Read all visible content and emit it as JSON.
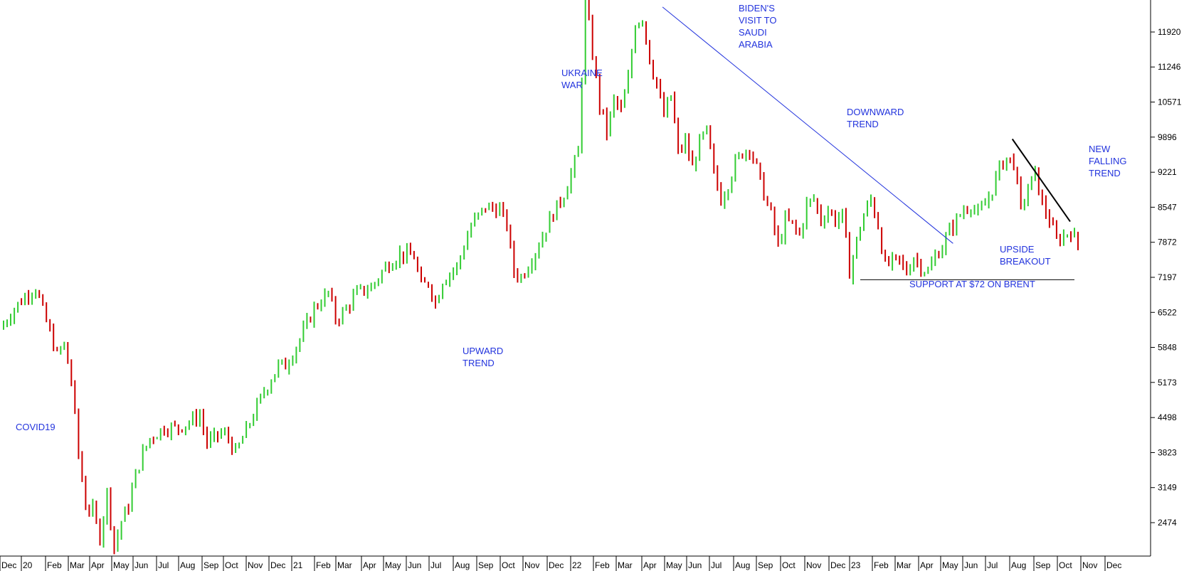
{
  "chart_data": {
    "type": "ohlc",
    "title": "",
    "ylim": [
      1800,
      12700
    ],
    "y_ticks": [
      11920,
      11246,
      10571,
      9896,
      9221,
      8547,
      7872,
      7197,
      6522,
      5848,
      5173,
      4498,
      3823,
      3149,
      2474
    ],
    "x_ticks": [
      "Dec",
      "20",
      "Feb",
      "Mar",
      "Apr",
      "May",
      "Jun",
      "Jul",
      "Aug",
      "Sep",
      "Oct",
      "Nov",
      "Dec",
      "21",
      "Feb",
      "Mar",
      "Apr",
      "May",
      "Jun",
      "Jul",
      "Aug",
      "Sep",
      "Oct",
      "Nov",
      "Dec",
      "22",
      "Feb",
      "Mar",
      "Apr",
      "May",
      "Jun",
      "Jul",
      "Aug",
      "Sep",
      "Oct",
      "Nov",
      "Dec",
      "23",
      "Feb",
      "Mar",
      "Apr",
      "May",
      "Jun",
      "Jul",
      "Aug",
      "Sep",
      "Oct",
      "Nov",
      "Dec"
    ],
    "up_color": "#33cc33",
    "down_color": "#cc0000",
    "annotation_color": "#2233dd",
    "grid": false,
    "price_path": [
      [
        0,
        6200
      ],
      [
        2,
        6600
      ],
      [
        4,
        6900
      ],
      [
        5,
        7000
      ],
      [
        6,
        6550
      ],
      [
        8,
        5700
      ],
      [
        9,
        5900
      ],
      [
        10,
        5200
      ],
      [
        11,
        3800
      ],
      [
        12,
        2800
      ],
      [
        13,
        2700
      ],
      [
        14,
        2200
      ],
      [
        15,
        3050
      ],
      [
        16,
        2000
      ],
      [
        17,
        2500
      ],
      [
        18,
        2800
      ],
      [
        19,
        3400
      ],
      [
        20,
        3800
      ],
      [
        21,
        4100
      ],
      [
        23,
        4300
      ],
      [
        25,
        4300
      ],
      [
        27,
        4450
      ],
      [
        28,
        4550
      ],
      [
        29,
        4000
      ],
      [
        31,
        4200
      ],
      [
        32,
        4100
      ],
      [
        33,
        3800
      ],
      [
        35,
        4400
      ],
      [
        37,
        5000
      ],
      [
        39,
        5500
      ],
      [
        40,
        5500
      ],
      [
        42,
        6000
      ],
      [
        44,
        6600
      ],
      [
        46,
        6900
      ],
      [
        47,
        6400
      ],
      [
        48,
        6500
      ],
      [
        49,
        6700
      ],
      [
        50,
        6900
      ],
      [
        52,
        7000
      ],
      [
        54,
        7400
      ],
      [
        56,
        7650
      ],
      [
        58,
        7600
      ],
      [
        59,
        7000
      ],
      [
        60,
        7100
      ],
      [
        61,
        6700
      ],
      [
        62,
        7150
      ],
      [
        64,
        7400
      ],
      [
        66,
        8200
      ],
      [
        68,
        8550
      ],
      [
        70,
        8500
      ],
      [
        71,
        8200
      ],
      [
        72,
        7300
      ],
      [
        73,
        7200
      ],
      [
        75,
        7700
      ],
      [
        77,
        8300
      ],
      [
        79,
        8800
      ],
      [
        80,
        9200
      ],
      [
        81,
        9600
      ],
      [
        82,
        12600
      ],
      [
        83,
        11500
      ],
      [
        84,
        10500
      ],
      [
        85,
        10000
      ],
      [
        86,
        10600
      ],
      [
        87,
        10400
      ],
      [
        88,
        11000
      ],
      [
        89,
        12100
      ],
      [
        90,
        12200
      ],
      [
        91,
        11400
      ],
      [
        92,
        10900
      ],
      [
        93,
        10300
      ],
      [
        94,
        10700
      ],
      [
        95,
        9600
      ],
      [
        96,
        9800
      ],
      [
        97,
        9300
      ],
      [
        98,
        9800
      ],
      [
        99,
        10000
      ],
      [
        100,
        9200
      ],
      [
        101,
        8700
      ],
      [
        102,
        9000
      ],
      [
        103,
        9400
      ],
      [
        104,
        9600
      ],
      [
        105,
        9700
      ],
      [
        106,
        9300
      ],
      [
        107,
        8800
      ],
      [
        108,
        8400
      ],
      [
        109,
        7800
      ],
      [
        110,
        8300
      ],
      [
        111,
        8200
      ],
      [
        112,
        8000
      ],
      [
        113,
        8600
      ],
      [
        114,
        8700
      ],
      [
        115,
        8300
      ],
      [
        116,
        8500
      ],
      [
        117,
        8300
      ],
      [
        118,
        8400
      ],
      [
        119,
        7300
      ],
      [
        120,
        7900
      ],
      [
        121,
        8400
      ],
      [
        122,
        8700
      ],
      [
        123,
        8200
      ],
      [
        124,
        7400
      ],
      [
        125,
        7500
      ],
      [
        126,
        7500
      ],
      [
        127,
        7300
      ],
      [
        128,
        7600
      ],
      [
        129,
        7400
      ],
      [
        130,
        7300
      ],
      [
        131,
        7600
      ],
      [
        132,
        7800
      ],
      [
        133,
        8100
      ],
      [
        134,
        8300
      ],
      [
        135,
        8500
      ],
      [
        136,
        8600
      ],
      [
        137,
        8400
      ],
      [
        138,
        8600
      ],
      [
        139,
        8900
      ],
      [
        140,
        9300
      ],
      [
        141,
        9500
      ],
      [
        142,
        9400
      ],
      [
        143,
        8500
      ],
      [
        144,
        8900
      ],
      [
        145,
        9200
      ],
      [
        146,
        8600
      ],
      [
        147,
        8300
      ],
      [
        148,
        7900
      ],
      [
        149,
        8000
      ],
      [
        150,
        8100
      ],
      [
        151,
        7800
      ]
    ],
    "annotations": [
      {
        "id": "covid",
        "lines": [
          "COVID19"
        ]
      },
      {
        "id": "upward",
        "lines": [
          "UPWARD",
          "TREND"
        ]
      },
      {
        "id": "ukraine",
        "lines": [
          "UKRAINE",
          "WAR"
        ]
      },
      {
        "id": "biden",
        "lines": [
          "BIDEN'S",
          "VISIT TO",
          "SAUDI",
          "ARABIA"
        ]
      },
      {
        "id": "downward",
        "lines": [
          "DOWNWARD",
          "TREND"
        ]
      },
      {
        "id": "breakout",
        "lines": [
          "UPSIDE",
          "BREAKOUT"
        ]
      },
      {
        "id": "support",
        "lines": [
          "SUPPORT AT $72 ON BRENT"
        ]
      },
      {
        "id": "newfalling",
        "lines": [
          "NEW",
          "FALLING",
          "TREND"
        ]
      }
    ],
    "trendlines": [
      {
        "id": "downward-trendline",
        "color": "#2233dd",
        "from": [
          92.8,
          12400
        ],
        "to": [
          133.5,
          7850
        ]
      },
      {
        "id": "support-line",
        "color": "#000000",
        "from": [
          120.5,
          7150
        ],
        "to": [
          150.5,
          7150
        ]
      },
      {
        "id": "new-falling-trendline",
        "color": "#000000",
        "from": [
          141.8,
          9860
        ],
        "to": [
          149.9,
          8270
        ]
      }
    ]
  }
}
